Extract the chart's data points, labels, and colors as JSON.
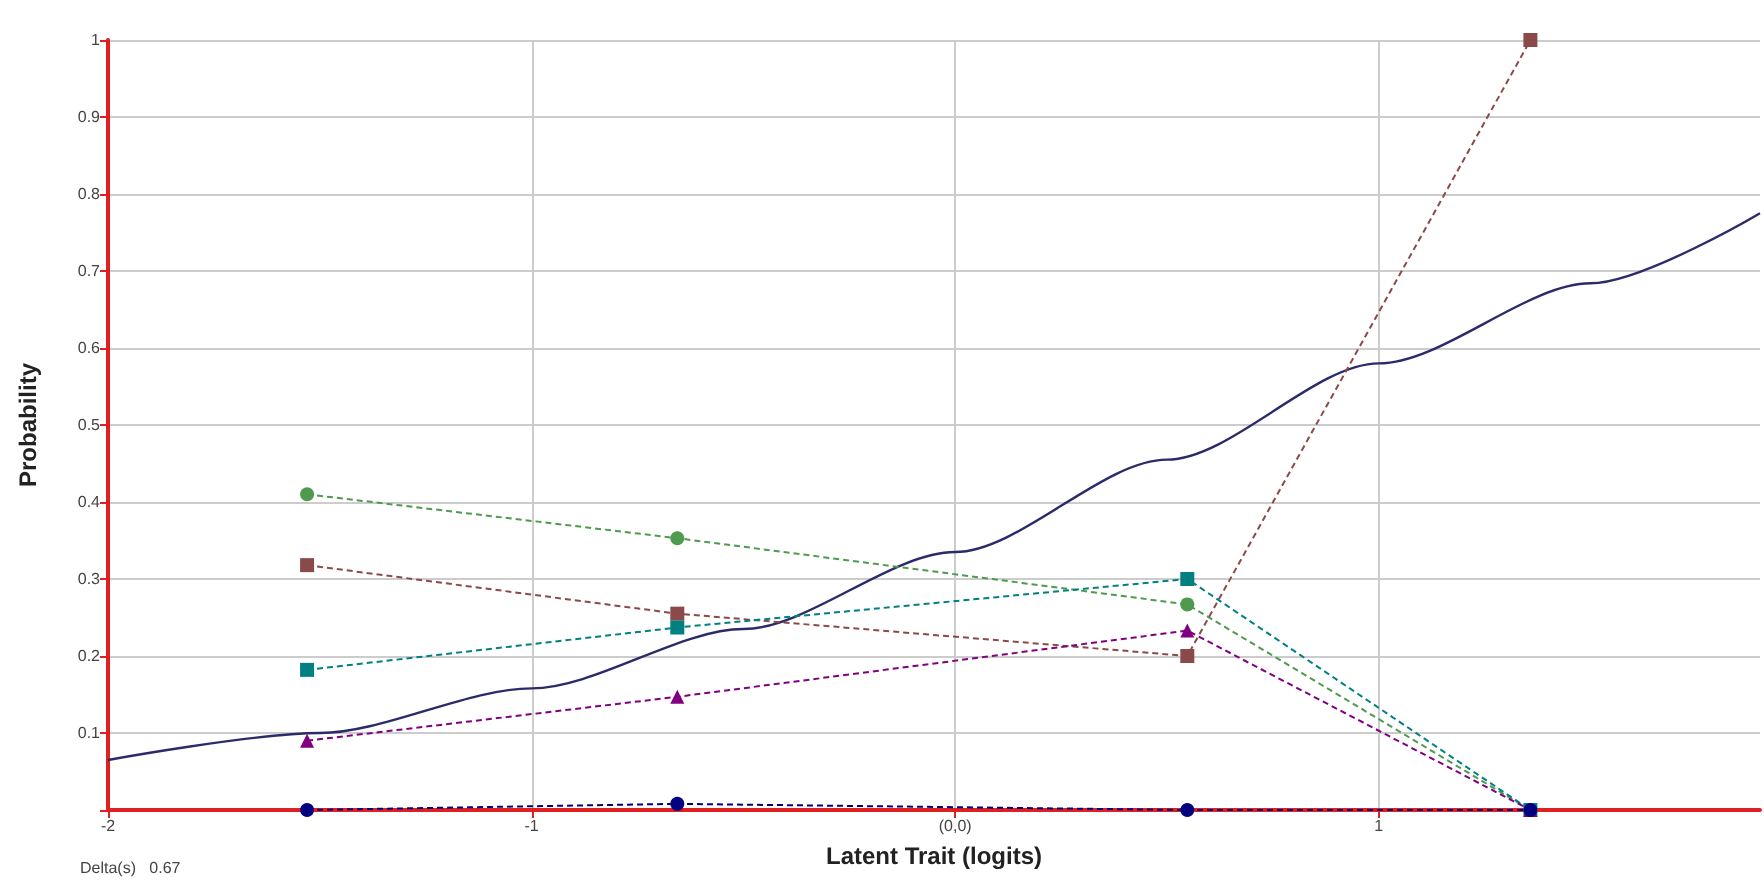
{
  "chart_data": {
    "type": "line",
    "xlabel": "Latent Trait (logits)",
    "ylabel": "Probability",
    "annotations": [
      "Delta(s)   0.67"
    ],
    "xlim": [
      -2,
      1.9
    ],
    "xticks": [
      -2,
      -1,
      {
        "value": 0,
        "label": "(0,0)"
      },
      1
    ],
    "ylim": [
      0,
      1
    ],
    "yticks": [
      {
        "value": 0,
        "label": null
      },
      0.1,
      0.2,
      0.3,
      0.4,
      0.5,
      0.6,
      0.7,
      0.8,
      0.9,
      1
    ],
    "grid": true,
    "series": [
      {
        "color": "#2b2b6a",
        "marker": "none",
        "line_style": "solid",
        "x": [
          -2,
          -1.5,
          -1,
          -0.5,
          0,
          0.5,
          1,
          1.5,
          1.9
        ],
        "values": [
          0.065,
          0.1,
          0.158,
          0.235,
          0.335,
          0.455,
          0.58,
          0.684,
          0.775
        ]
      },
      {
        "color": "#4f9a4f",
        "marker": "circle",
        "line_style": "dashed",
        "x": [
          -1.53,
          -0.656,
          0.548,
          1.358
        ],
        "values": [
          0.41,
          0.353,
          0.267,
          0
        ]
      },
      {
        "color": "#8b4a4a",
        "marker": "square",
        "line_style": "dashed",
        "x": [
          -1.53,
          -0.656,
          0.548,
          1.358
        ],
        "values": [
          0.318,
          0.255,
          0.2,
          1
        ]
      },
      {
        "color": "#008080",
        "marker": "square",
        "line_style": "dashed",
        "x": [
          -1.53,
          -0.656,
          0.548,
          1.358
        ],
        "values": [
          0.182,
          0.237,
          0.3,
          0
        ]
      },
      {
        "color": "#800080",
        "marker": "triangle",
        "line_style": "dashed",
        "x": [
          -1.53,
          -0.656,
          0.548,
          1.358
        ],
        "values": [
          0.09,
          0.147,
          0.233,
          0
        ]
      },
      {
        "color": "#000080",
        "marker": "circle",
        "line_style": "dashed",
        "x": [
          -1.53,
          -0.656,
          0.548,
          1.358
        ],
        "values": [
          0,
          0.008,
          0,
          0
        ]
      }
    ]
  }
}
